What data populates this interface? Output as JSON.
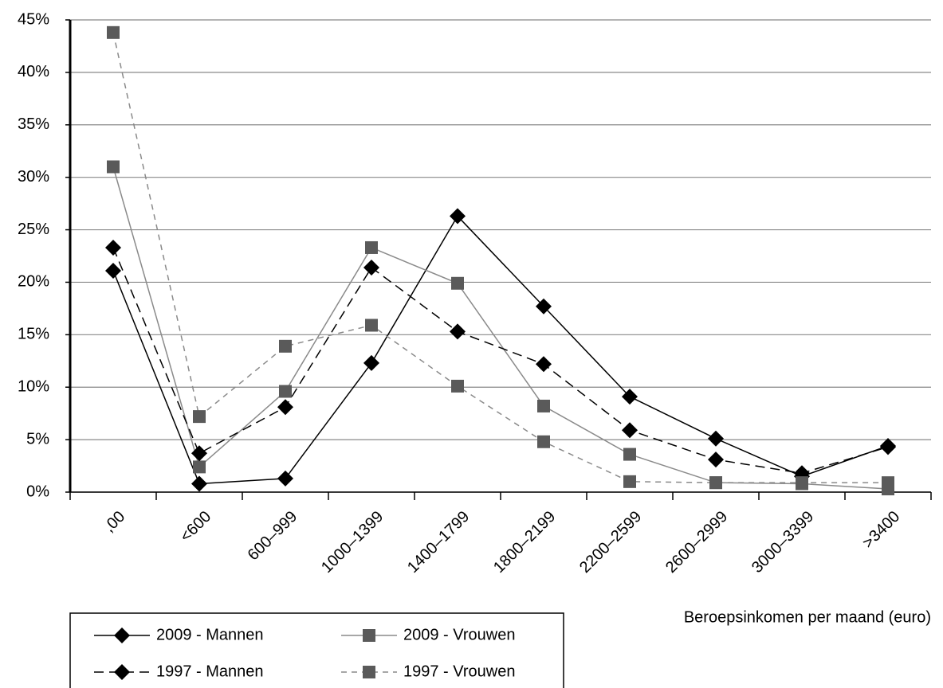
{
  "chart_data": {
    "type": "line",
    "x_label": "Beroepsinkomen per maand (euro)",
    "categories": [
      ",00",
      "<600",
      "600–999",
      "1000–1399",
      "1400–1799",
      "1800–2199",
      "2200–2599",
      "2600–2999",
      "3000–3399",
      ">3400"
    ],
    "series": [
      {
        "name": "2009 - Mannen",
        "color": "#000000",
        "linestyle": "solid",
        "marker": "diamond",
        "values": [
          21.1,
          0.8,
          1.3,
          12.3,
          26.3,
          17.7,
          9.1,
          5.1,
          1.5,
          4.4
        ]
      },
      {
        "name": "2009 - Vrouwen",
        "color": "#5a5a5a",
        "linestyle": "solid",
        "marker": "square",
        "values": [
          31.0,
          2.4,
          9.6,
          23.3,
          19.9,
          8.2,
          3.6,
          0.9,
          0.8,
          0.3
        ]
      },
      {
        "name": "1997 - Mannen",
        "color": "#000000",
        "linestyle": "dashed",
        "marker": "diamond",
        "values": [
          23.3,
          3.7,
          8.1,
          21.4,
          15.3,
          12.2,
          5.9,
          3.1,
          1.8,
          4.3
        ]
      },
      {
        "name": "1997 - Vrouwen",
        "color": "#5a5a5a",
        "linestyle": "dashed",
        "marker": "square",
        "values": [
          43.8,
          7.2,
          13.9,
          15.9,
          10.1,
          4.8,
          1.0,
          0.9,
          0.9,
          0.9
        ]
      }
    ],
    "ylim": [
      0,
      45
    ],
    "yticks": [
      {
        "value": 0,
        "label": "0%"
      },
      {
        "value": 5,
        "label": "5%"
      },
      {
        "value": 10,
        "label": "10%"
      },
      {
        "value": 15,
        "label": "15%"
      },
      {
        "value": 20,
        "label": "20%"
      },
      {
        "value": 25,
        "label": "25%"
      },
      {
        "value": 30,
        "label": "30%"
      },
      {
        "value": 35,
        "label": "35%"
      },
      {
        "value": 40,
        "label": "40%"
      },
      {
        "value": 45,
        "label": "45%"
      }
    ],
    "grid": true,
    "legend": "bottom-left"
  }
}
